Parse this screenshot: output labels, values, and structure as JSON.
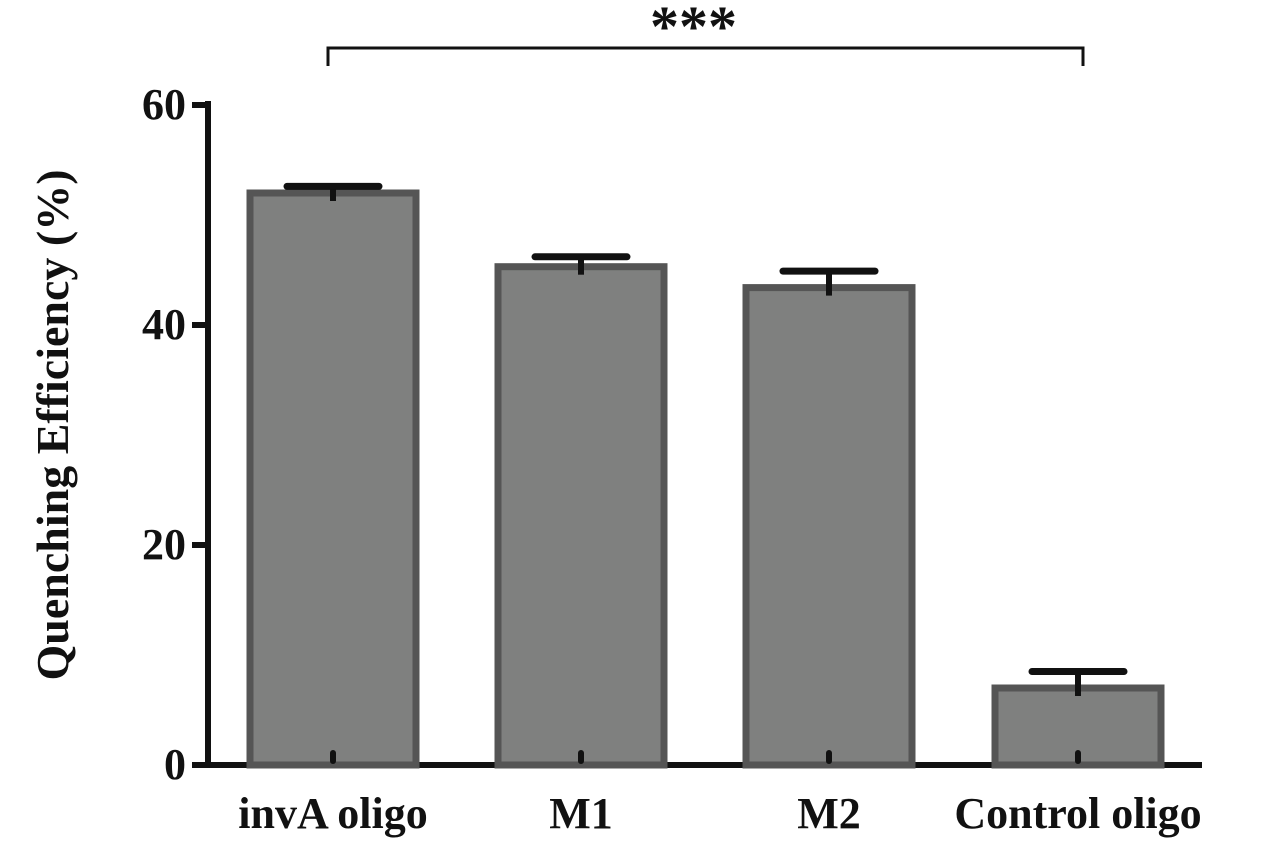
{
  "chart_data": {
    "type": "bar",
    "categories": [
      "invA oligo",
      "M1",
      "M2",
      "Control oligo"
    ],
    "values": [
      52,
      45.3,
      43.4,
      7
    ],
    "errors": [
      0.6,
      0.9,
      1.5,
      1.5
    ],
    "ylabel": "Quenching Efficiency (%)",
    "xlabel": "",
    "ylim": [
      0,
      60
    ],
    "yticks": [
      0,
      20,
      40,
      60
    ],
    "grid": false,
    "bar_color": "#7f807f",
    "bar_edge_color": "#555555",
    "significance": {
      "label": "***",
      "from_category": "invA oligo",
      "to_category": "Control oligo"
    }
  }
}
